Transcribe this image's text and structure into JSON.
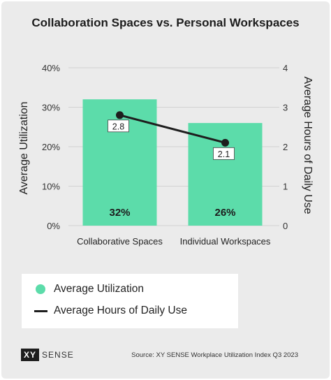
{
  "chart_data": {
    "type": "bar",
    "title": "Collaboration Spaces vs. Personal Workspaces",
    "categories": [
      "Collaborative Spaces",
      "Individual Workspaces"
    ],
    "series": [
      {
        "name": "Average Utilization",
        "type": "bar",
        "axis": "left",
        "values": [
          32,
          26
        ],
        "labels": [
          "32%",
          "26%"
        ],
        "color": "#5cdcaa"
      },
      {
        "name": "Average Hours of Daily Use",
        "type": "line",
        "axis": "right",
        "values": [
          2.8,
          2.1
        ],
        "labels": [
          "2.8",
          "2.1"
        ],
        "color": "#1e1e1e"
      }
    ],
    "ylabel": "Average Utilization",
    "y2label": "Average Hours of Daily Use",
    "ylim": [
      0,
      40
    ],
    "y2lim": [
      0,
      4
    ],
    "yticks": [
      "0%",
      "10%",
      "20%",
      "30%",
      "40%"
    ],
    "y2ticks": [
      "0",
      "1",
      "2",
      "3",
      "4"
    ],
    "grid": true,
    "legend": "bottom-left"
  },
  "logo": {
    "mark": "XY",
    "text": "SENSE"
  },
  "source": "Source: XY SENSE Workplace Utilization Index Q3 2023"
}
